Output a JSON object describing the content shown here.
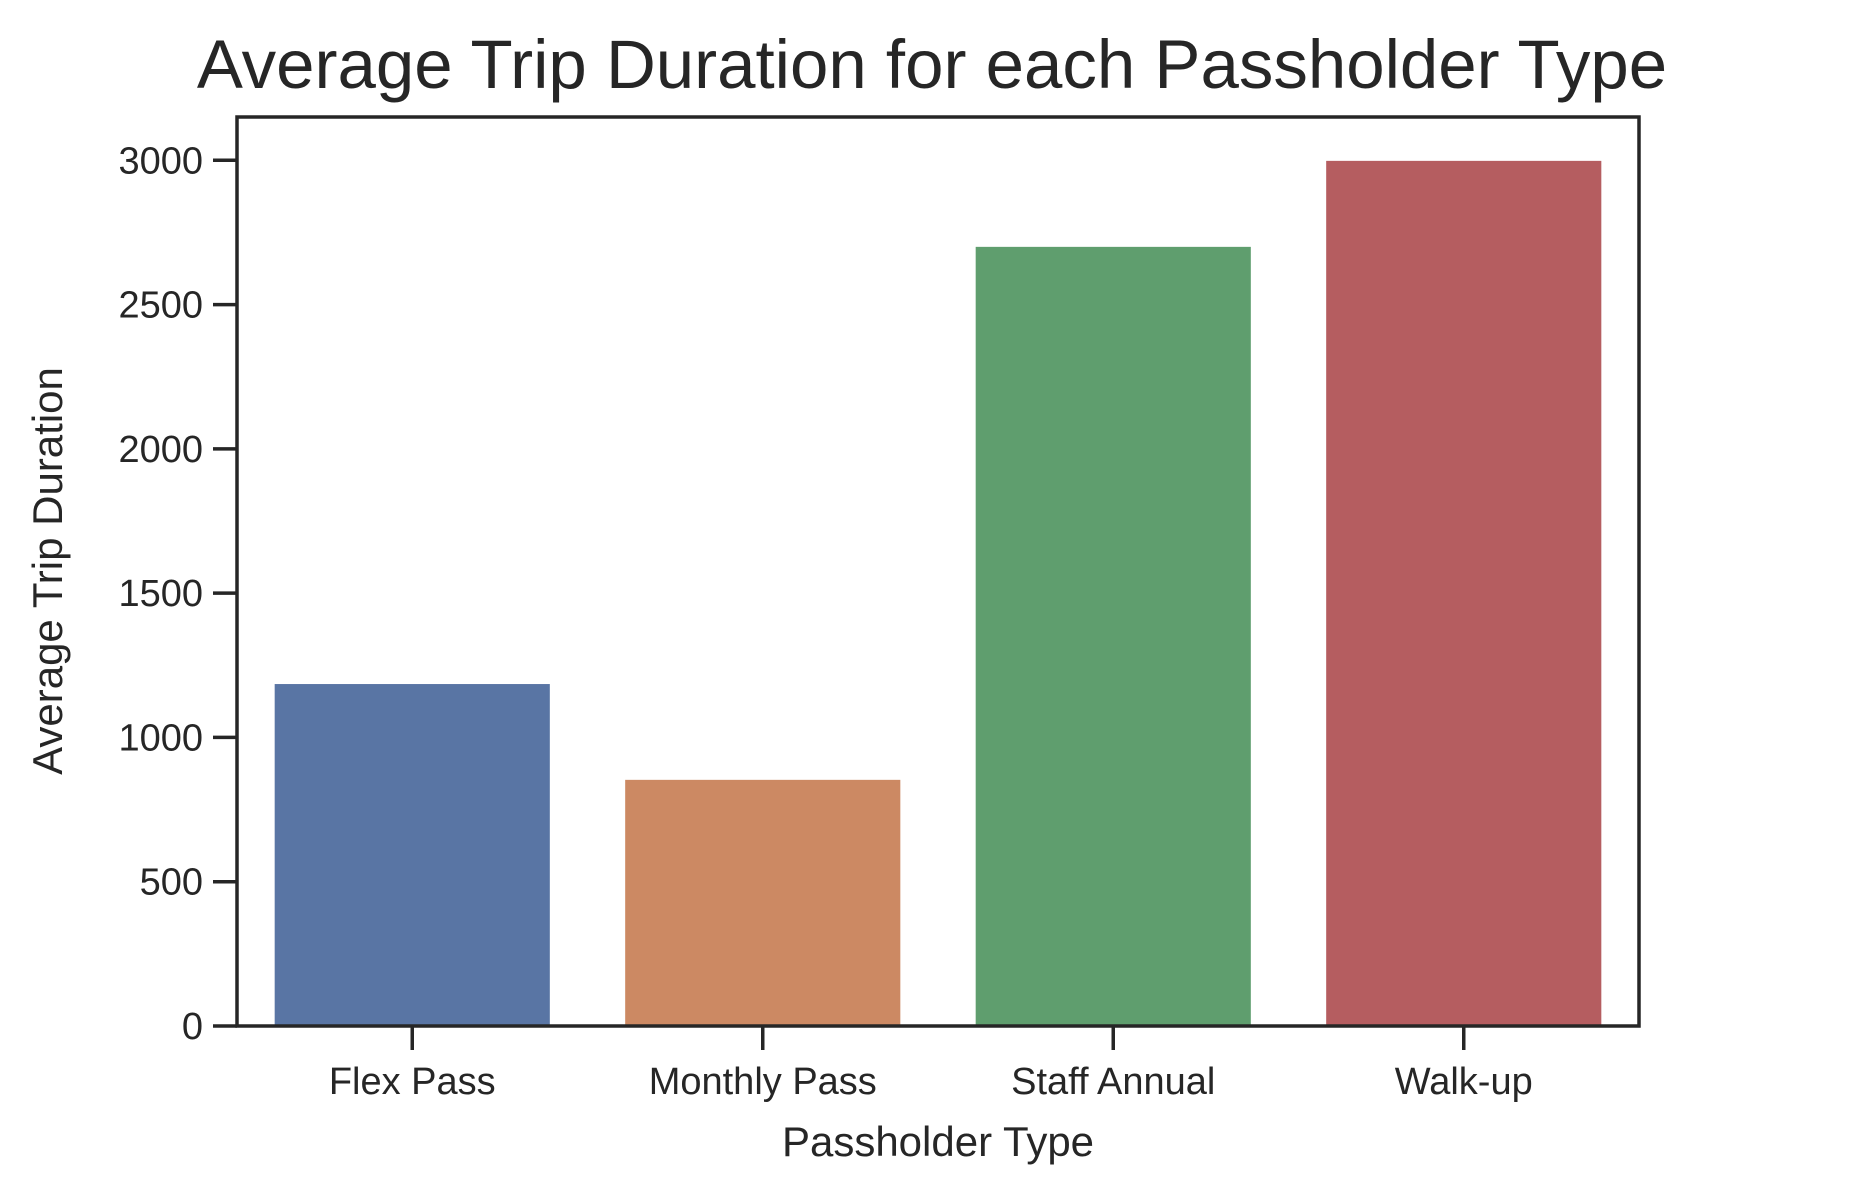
{
  "chart_data": {
    "type": "bar",
    "title": "Average Trip Duration for each Passholder Type",
    "xlabel": "Passholder Type",
    "ylabel": "Average Trip Duration",
    "categories": [
      "Flex Pass",
      "Monthly Pass",
      "Staff Annual",
      "Walk-up"
    ],
    "values": [
      1185,
      853,
      2700,
      2998
    ],
    "colors": [
      "#5975a4",
      "#cc8963",
      "#5f9e6e",
      "#b55d60"
    ],
    "ylim": [
      0,
      3150
    ],
    "yticks": [
      0,
      500,
      1000,
      1500,
      2000,
      2500,
      3000
    ],
    "ytick_labels": [
      "0",
      "500",
      "1000",
      "1500",
      "2000",
      "2500",
      "3000"
    ],
    "grid": false,
    "legend": "none"
  }
}
